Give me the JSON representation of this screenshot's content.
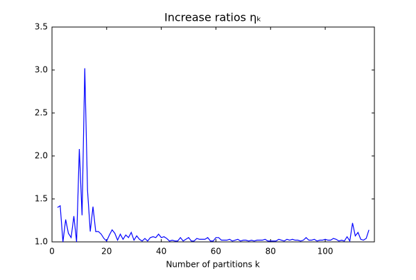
{
  "chart_data": {
    "type": "line",
    "title": "Increase ratios ηₖ",
    "xlabel": "Number of partitions k",
    "x": [
      2,
      3,
      4,
      5,
      6,
      7,
      8,
      9,
      10,
      11,
      12,
      13,
      14,
      15,
      16,
      17,
      18,
      19,
      20,
      21,
      22,
      23,
      24,
      25,
      26,
      27,
      28,
      29,
      30,
      31,
      32,
      33,
      34,
      35,
      36,
      37,
      38,
      39,
      40,
      41,
      42,
      43,
      44,
      45,
      46,
      47,
      48,
      49,
      50,
      51,
      52,
      53,
      54,
      55,
      56,
      57,
      58,
      59,
      60,
      61,
      62,
      63,
      64,
      65,
      66,
      67,
      68,
      69,
      70,
      71,
      72,
      73,
      74,
      75,
      76,
      77,
      78,
      79,
      80,
      81,
      82,
      83,
      84,
      85,
      86,
      87,
      88,
      89,
      90,
      91,
      92,
      93,
      94,
      95,
      96,
      97,
      98,
      99,
      100,
      101,
      102,
      103,
      104,
      105,
      106,
      107,
      108,
      109,
      110,
      111,
      112,
      113,
      114,
      115,
      116
    ],
    "series": [
      {
        "name": "eta",
        "color": "#0000ff",
        "values": [
          1.4,
          1.42,
          1.0,
          1.26,
          1.1,
          1.05,
          1.3,
          1.0,
          2.08,
          1.31,
          3.02,
          1.6,
          1.12,
          1.41,
          1.12,
          1.12,
          1.09,
          1.04,
          1.01,
          1.08,
          1.14,
          1.1,
          1.02,
          1.09,
          1.03,
          1.08,
          1.05,
          1.11,
          1.02,
          1.07,
          1.03,
          1.01,
          1.04,
          1.01,
          1.05,
          1.06,
          1.05,
          1.09,
          1.05,
          1.06,
          1.04,
          1.01,
          1.02,
          1.01,
          1.01,
          1.05,
          1.01,
          1.03,
          1.05,
          1.01,
          1.01,
          1.04,
          1.03,
          1.03,
          1.03,
          1.05,
          1.01,
          1.01,
          1.05,
          1.05,
          1.02,
          1.02,
          1.02,
          1.03,
          1.01,
          1.02,
          1.03,
          1.01,
          1.02,
          1.02,
          1.01,
          1.02,
          1.01,
          1.02,
          1.02,
          1.02,
          1.03,
          1.01,
          1.01,
          1.01,
          1.01,
          1.03,
          1.02,
          1.01,
          1.03,
          1.02,
          1.03,
          1.02,
          1.02,
          1.01,
          1.02,
          1.05,
          1.02,
          1.02,
          1.03,
          1.01,
          1.02,
          1.02,
          1.03,
          1.02,
          1.02,
          1.04,
          1.03,
          1.01,
          1.02,
          1.01,
          1.06,
          1.01,
          1.22,
          1.07,
          1.11,
          1.03,
          1.02,
          1.04,
          1.14
        ]
      }
    ],
    "xlim": [
      0,
      118
    ],
    "ylim": [
      1.0,
      3.5
    ],
    "xticks": [
      0,
      20,
      40,
      60,
      80,
      100
    ],
    "yticks": [
      {
        "value": 1.0,
        "label": "1.0"
      },
      {
        "value": 1.5,
        "label": "1.5"
      },
      {
        "value": 2.0,
        "label": "2.0"
      },
      {
        "value": 2.5,
        "label": "2.5"
      },
      {
        "value": 3.0,
        "label": "3.0"
      },
      {
        "value": 3.5,
        "label": "3.5"
      }
    ]
  }
}
